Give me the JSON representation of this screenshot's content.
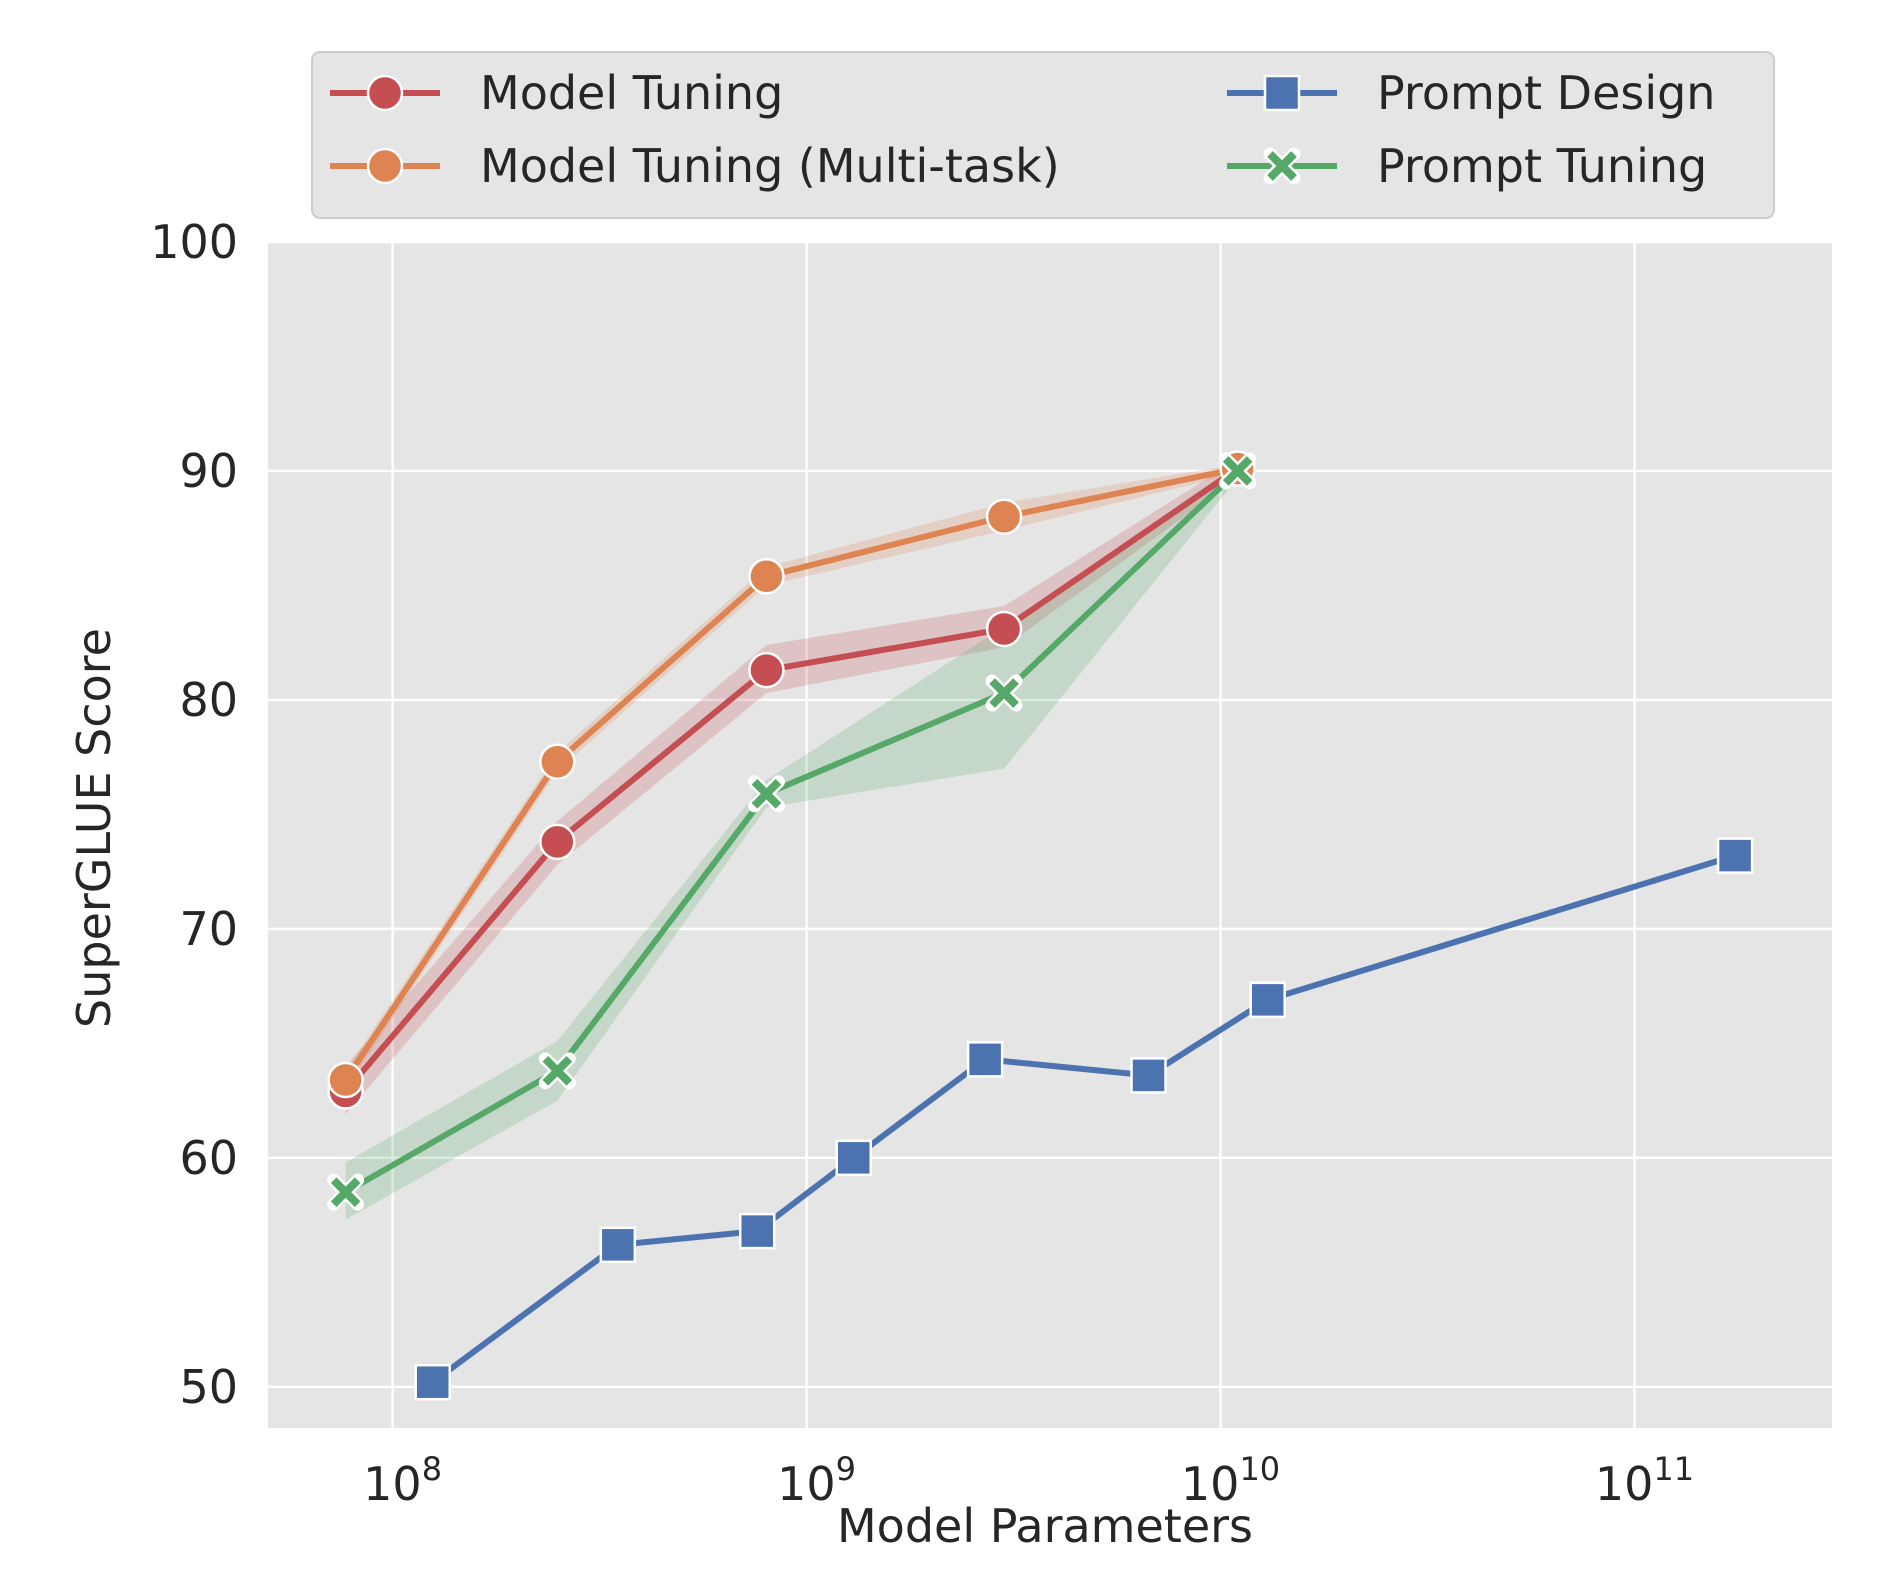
{
  "chart_data": {
    "type": "line",
    "title": "",
    "xlabel": "Model Parameters",
    "ylabel": "SuperGLUE Score",
    "xscale": "log",
    "xlim": [
      50000000.0,
      300000000000.0
    ],
    "ylim": [
      48.2,
      100
    ],
    "yticks": [
      50,
      60,
      70,
      80,
      90,
      100
    ],
    "xticks": [
      {
        "value": 100000000.0,
        "base": "10",
        "exp": "8"
      },
      {
        "value": 1000000000.0,
        "base": "10",
        "exp": "9"
      },
      {
        "value": 10000000000.0,
        "base": "10",
        "exp": "10"
      },
      {
        "value": 100000000000.0,
        "base": "10",
        "exp": "11"
      }
    ],
    "grid": true,
    "background": "#e5e5e5",
    "legend_position": "top-center (above plot, two columns)",
    "series": [
      {
        "name": "Model Tuning",
        "color": "#c44e52",
        "marker": "circle",
        "x": [
          77000000.0,
          250000000.0,
          800000000.0,
          3000000000.0,
          11000000000.0
        ],
        "y": [
          62.9,
          73.8,
          81.3,
          83.1,
          90.1
        ],
        "band_low": [
          61.9,
          72.8,
          80.3,
          82.3,
          89.7
        ],
        "band_high": [
          64.0,
          74.7,
          82.4,
          84.1,
          90.5
        ]
      },
      {
        "name": "Model Tuning (Multi-task)",
        "color": "#dd8452",
        "marker": "circle",
        "x": [
          77000000.0,
          250000000.0,
          800000000.0,
          3000000000.0,
          11000000000.0
        ],
        "y": [
          63.4,
          77.3,
          85.4,
          88.0,
          90.1
        ],
        "band_low": [
          63.0,
          76.9,
          85.0,
          87.4,
          89.9
        ],
        "band_high": [
          63.8,
          77.7,
          85.8,
          88.6,
          90.3
        ]
      },
      {
        "name": "Prompt Design",
        "color": "#4c72b0",
        "marker": "square",
        "x": [
          125000000.0,
          350000000.0,
          760000000.0,
          1300000000.0,
          2700000000.0,
          6700000000.0,
          13000000000.0,
          175000000000.0
        ],
        "y": [
          50.2,
          56.2,
          56.8,
          60.0,
          64.3,
          63.6,
          66.9,
          73.2
        ]
      },
      {
        "name": "Prompt Tuning",
        "color": "#55a868",
        "marker": "x",
        "x": [
          77000000.0,
          250000000.0,
          800000000.0,
          3000000000.0,
          11000000000.0
        ],
        "y": [
          58.5,
          63.8,
          75.9,
          80.3,
          90.0
        ],
        "band_low": [
          57.3,
          62.5,
          75.3,
          77.0,
          89.7
        ],
        "band_high": [
          59.8,
          65.1,
          76.5,
          83.2,
          90.3
        ]
      }
    ]
  }
}
